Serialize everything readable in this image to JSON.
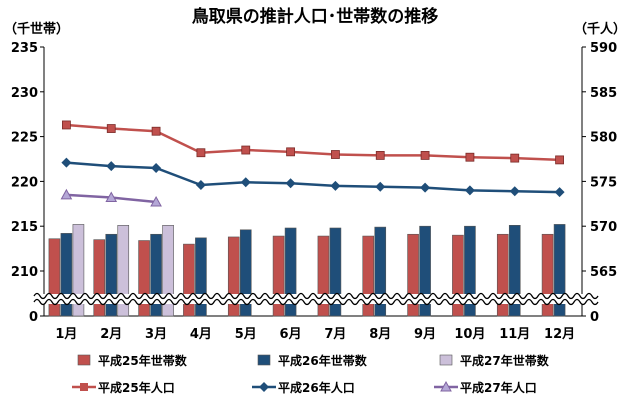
{
  "chart_data": {
    "type": "bar+line",
    "title": "鳥取県の推計人口･世帯数の推移",
    "left_axis": {
      "unit_label": "（千世帯）",
      "ylim": [
        205,
        235
      ],
      "ticks": [
        210,
        215,
        220,
        225,
        230,
        235
      ],
      "bottom_label": "0",
      "break": true
    },
    "right_axis": {
      "unit_label": "（千人）",
      "ylim": [
        560,
        590
      ],
      "ticks": [
        565,
        570,
        575,
        580,
        585,
        590
      ],
      "bottom_label": "0",
      "break": true
    },
    "categories": [
      "1月",
      "2月",
      "3月",
      "4月",
      "5月",
      "6月",
      "7月",
      "8月",
      "9月",
      "10月",
      "11月",
      "12月"
    ],
    "bar_series": [
      {
        "name": "平成25年世帯数",
        "color": "#c0504d",
        "values": [
          213.6,
          213.5,
          213.4,
          213.0,
          213.8,
          213.9,
          213.9,
          213.9,
          214.1,
          214.0,
          214.1,
          214.1
        ]
      },
      {
        "name": "平成26年世帯数",
        "color": "#1f4e79",
        "values": [
          214.2,
          214.1,
          214.1,
          213.7,
          214.6,
          214.8,
          214.8,
          214.9,
          215.0,
          215.0,
          215.1,
          215.2
        ]
      },
      {
        "name": "平成27年世帯数",
        "color": "#ccc0da",
        "values": [
          215.2,
          215.1,
          215.1,
          null,
          null,
          null,
          null,
          null,
          null,
          null,
          null,
          null
        ]
      }
    ],
    "line_series": [
      {
        "name": "平成25年人口",
        "color": "#c0504d",
        "marker": "square",
        "values": [
          581.3,
          580.9,
          580.6,
          578.2,
          578.5,
          578.3,
          578.0,
          577.9,
          577.9,
          577.7,
          577.6,
          577.4
        ]
      },
      {
        "name": "平成26年人口",
        "color": "#1f4e79",
        "marker": "diamond",
        "values": [
          577.1,
          576.7,
          576.5,
          574.6,
          574.9,
          574.8,
          574.5,
          574.4,
          574.3,
          574.0,
          573.9,
          573.8
        ]
      },
      {
        "name": "平成27年人口",
        "color": "#8064a2",
        "marker": "triangle",
        "values": [
          573.5,
          573.2,
          572.7,
          null,
          null,
          null,
          null,
          null,
          null,
          null,
          null,
          null
        ]
      }
    ],
    "legend": [
      {
        "label": "平成25年世帯数",
        "kind": "bar",
        "color": "#c0504d"
      },
      {
        "label": "平成26年世帯数",
        "kind": "bar",
        "color": "#1f4e79"
      },
      {
        "label": "平成27年世帯数",
        "kind": "bar",
        "color": "#ccc0da"
      },
      {
        "label": "平成25年人口",
        "kind": "line",
        "marker": "square",
        "color": "#c0504d"
      },
      {
        "label": "平成26年人口",
        "kind": "line",
        "marker": "diamond",
        "color": "#1f4e79"
      },
      {
        "label": "平成27年人口",
        "kind": "line",
        "marker": "triangle",
        "color": "#8064a2"
      }
    ],
    "legend_position": "bottom",
    "grid": false
  }
}
